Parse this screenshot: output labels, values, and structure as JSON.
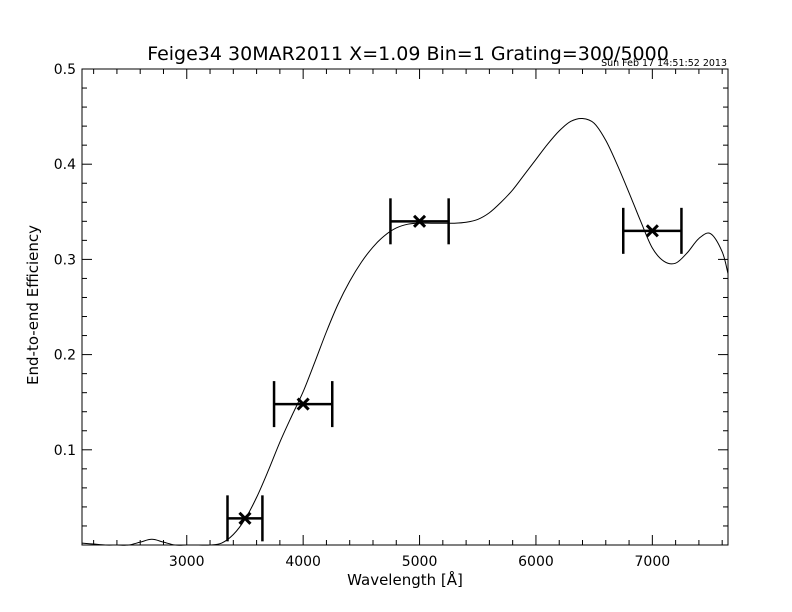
{
  "chart_data": {
    "type": "line",
    "title": "Feige34 30MAR2011 X=1.09 Bin=1 Grating=300/5000",
    "timestamp": "Sun Feb 17 14:51:52 2013",
    "xlabel": "Wavelength [Å]",
    "ylabel": "End-to-end Efficiency",
    "xlim": [
      2100,
      7650
    ],
    "ylim": [
      0.0,
      0.5
    ],
    "xticks": [
      3000,
      4000,
      5000,
      6000,
      7000
    ],
    "xtick_labels": [
      "3000",
      "4000",
      "5000",
      "6000",
      "7000"
    ],
    "yticks": [
      0.1,
      0.2,
      0.3,
      0.4,
      0.5
    ],
    "ytick_labels": [
      "0.1",
      "0.2",
      "0.3",
      "0.4",
      "0.5"
    ],
    "grid": false,
    "series": [
      {
        "kind": "curve",
        "x": [
          2100,
          2200,
          2300,
          2400,
          2500,
          2600,
          2700,
          2800,
          2900,
          3000,
          3100,
          3200,
          3300,
          3400,
          3500,
          3600,
          3700,
          3800,
          3900,
          4000,
          4100,
          4200,
          4300,
          4400,
          4500,
          4600,
          4700,
          4800,
          4900,
          5000,
          5100,
          5200,
          5300,
          5400,
          5500,
          5600,
          5700,
          5800,
          5900,
          6000,
          6100,
          6200,
          6300,
          6400,
          6500,
          6600,
          6700,
          6800,
          6900,
          7000,
          7100,
          7200,
          7300,
          7400,
          7500,
          7600,
          7650
        ],
        "y": [
          0.002,
          0.001,
          0.0,
          0.0,
          0.0,
          0.003,
          0.006,
          0.003,
          0.0,
          0.0,
          0.0,
          0.0,
          0.002,
          0.011,
          0.027,
          0.05,
          0.078,
          0.108,
          0.135,
          0.161,
          0.192,
          0.224,
          0.253,
          0.277,
          0.297,
          0.313,
          0.325,
          0.333,
          0.337,
          0.338,
          0.338,
          0.338,
          0.338,
          0.339,
          0.342,
          0.349,
          0.36,
          0.373,
          0.389,
          0.405,
          0.421,
          0.435,
          0.445,
          0.448,
          0.443,
          0.425,
          0.399,
          0.37,
          0.34,
          0.312,
          0.298,
          0.296,
          0.307,
          0.322,
          0.327,
          0.308,
          0.285
        ]
      },
      {
        "kind": "points",
        "x": [
          3500,
          4000,
          5000,
          7000
        ],
        "y": [
          0.028,
          0.148,
          0.34,
          0.33
        ],
        "x_error": [
          150,
          250,
          250,
          250
        ]
      }
    ]
  }
}
